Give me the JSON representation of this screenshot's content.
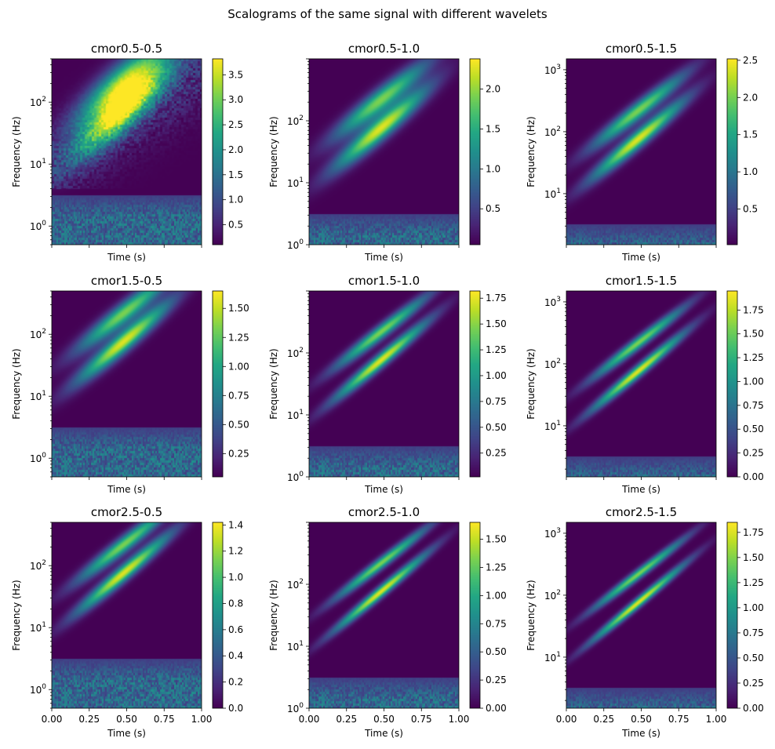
{
  "figure": {
    "suptitle": "Scalograms of the same signal with different wavelets"
  },
  "chart_data": {
    "type": "heatmap",
    "colormap": "viridis",
    "shared_x": true,
    "xlabel": "Time (s)",
    "ylabel": "Frequency (Hz)",
    "x_ticks": [
      "0.00",
      "0.25",
      "0.50",
      "0.75",
      "1.00"
    ],
    "x_tick_values": [
      0,
      0.25,
      0.5,
      0.75,
      1.0
    ],
    "xlim": [
      0,
      1
    ],
    "panels": [
      {
        "title": "cmor0.5-0.5",
        "ylim": [
          0.5,
          500
        ],
        "yscale": "log",
        "ytick_exponents": [
          0,
          1,
          2
        ],
        "colorbar_ticks": [
          "0.5",
          "1.0",
          "1.5",
          "2.0",
          "2.5",
          "3.0",
          "3.5"
        ],
        "colorbar_range": [
          0.1,
          3.82
        ],
        "sharp": 0.6
      },
      {
        "title": "cmor0.5-1.0",
        "ylim": [
          1,
          1000
        ],
        "yscale": "log",
        "ytick_exponents": [
          0,
          1,
          2
        ],
        "colorbar_ticks": [
          "0.5",
          "1.0",
          "1.5",
          "2.0"
        ],
        "colorbar_range": [
          0.05,
          2.38
        ],
        "sharp": 1.0
      },
      {
        "title": "cmor0.5-1.5",
        "ylim": [
          1.5,
          1500
        ],
        "yscale": "log",
        "ytick_exponents": [
          1,
          2,
          3
        ],
        "colorbar_ticks": [
          "0.5",
          "1.0",
          "1.5",
          "2.0",
          "2.5"
        ],
        "colorbar_range": [
          0.02,
          2.52
        ],
        "sharp": 1.3
      },
      {
        "title": "cmor1.5-0.5",
        "ylim": [
          0.5,
          500
        ],
        "yscale": "log",
        "ytick_exponents": [
          0,
          1,
          2
        ],
        "colorbar_ticks": [
          "0.25",
          "0.50",
          "0.75",
          "1.00",
          "1.25",
          "1.50"
        ],
        "colorbar_range": [
          0.05,
          1.65
        ],
        "sharp": 1.1
      },
      {
        "title": "cmor1.5-1.0",
        "ylim": [
          1,
          1000
        ],
        "yscale": "log",
        "ytick_exponents": [
          0,
          1,
          2
        ],
        "colorbar_ticks": [
          "0.25",
          "0.50",
          "0.75",
          "1.00",
          "1.25",
          "1.50",
          "1.75"
        ],
        "colorbar_range": [
          0.02,
          1.82
        ],
        "sharp": 1.6
      },
      {
        "title": "cmor1.5-1.5",
        "ylim": [
          1.5,
          1500
        ],
        "yscale": "log",
        "ytick_exponents": [
          1,
          2,
          3
        ],
        "colorbar_ticks": [
          "0.00",
          "0.25",
          "0.50",
          "0.75",
          "1.00",
          "1.25",
          "1.50",
          "1.75"
        ],
        "colorbar_range": [
          0,
          1.95
        ],
        "sharp": 1.9
      },
      {
        "title": "cmor2.5-0.5",
        "ylim": [
          0.5,
          500
        ],
        "yscale": "log",
        "ytick_exponents": [
          0,
          1,
          2
        ],
        "colorbar_ticks": [
          "0.0",
          "0.2",
          "0.4",
          "0.6",
          "0.8",
          "1.0",
          "1.2",
          "1.4"
        ],
        "colorbar_range": [
          0,
          1.42
        ],
        "sharp": 1.4
      },
      {
        "title": "cmor2.5-1.0",
        "ylim": [
          1,
          1000
        ],
        "yscale": "log",
        "ytick_exponents": [
          0,
          1,
          2
        ],
        "colorbar_ticks": [
          "0.00",
          "0.25",
          "0.50",
          "0.75",
          "1.00",
          "1.25",
          "1.50"
        ],
        "colorbar_range": [
          0,
          1.65
        ],
        "sharp": 2.0
      },
      {
        "title": "cmor2.5-1.5",
        "ylim": [
          1.5,
          1500
        ],
        "yscale": "log",
        "ytick_exponents": [
          1,
          2,
          3
        ],
        "colorbar_ticks": [
          "0.00",
          "0.25",
          "0.50",
          "0.75",
          "1.00",
          "1.25",
          "1.50",
          "1.75"
        ],
        "colorbar_range": [
          0,
          1.85
        ],
        "sharp": 2.3
      }
    ]
  }
}
